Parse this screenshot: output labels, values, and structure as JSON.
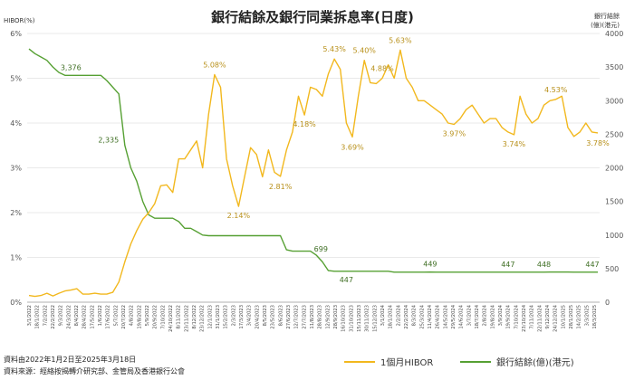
{
  "chart_data": {
    "type": "line",
    "title": "銀行結餘及銀行同業拆息率(日度)",
    "left_axis_title": "HIBOR(%)",
    "right_axis_title": "銀行結餘\n(億)(港元)",
    "ylim_left": [
      0,
      6
    ],
    "ylim_right": [
      0,
      4000
    ],
    "left_ticks": [
      "0%",
      "1%",
      "2%",
      "3%",
      "4%",
      "5%",
      "6%"
    ],
    "right_ticks": [
      "0",
      "500",
      "1000",
      "1500",
      "2000",
      "2500",
      "3000",
      "3500",
      "4000"
    ],
    "x_ticks": [
      "3/1/2022",
      "18/1/2022",
      "7/2/2022",
      "22/2/2022",
      "9/3/2022",
      "24/3/2022",
      "8/4/2022",
      "28/4/2022",
      "17/5/2022",
      "1/6/2022",
      "17/6/2022",
      "5/7/2022",
      "20/7/2022",
      "4/8/2022",
      "19/8/2022",
      "5/9/2022",
      "20/9/2022",
      "7/10/2022",
      "24/10/2022",
      "8/11/2022",
      "23/11/2022",
      "8/12/2022",
      "23/12/2022",
      "12/1/2023",
      "31/1/2023",
      "15/2/2023",
      "2/3/2023",
      "17/3/2023",
      "3/4/2023",
      "20/4/2023",
      "8/5/2023",
      "23/5/2023",
      "8/6/2023",
      "27/6/2023",
      "12/7/2023",
      "27/7/2023",
      "11/8/2023",
      "28/8/2023",
      "12/9/2023",
      "28/9/2023",
      "16/10/2023",
      "31/10/2023",
      "15/11/2023",
      "30/11/2023",
      "15/12/2023",
      "3/1/2024",
      "18/1/2024",
      "2/2/2024",
      "22/2/2024",
      "8/3/2024",
      "25/3/2024",
      "11/4/2024",
      "26/4/2024",
      "14/5/2024",
      "29/5/2024",
      "14/6/2024",
      "3/7/2024",
      "18/7/2024",
      "2/8/2024",
      "19/8/2024",
      "3/9/2024",
      "19/9/2024",
      "7/10/2024",
      "23/10/2024",
      "7/11/2024",
      "22/11/2024",
      "9/12/2024",
      "24/12/2024",
      "10/1/2025",
      "28/1/2025",
      "14/2/2025",
      "3/3/2025",
      "18/3/2025"
    ],
    "series": [
      {
        "name": "1個月HIBOR",
        "color": "#f2b81e",
        "axis": "left",
        "values": [
          0.15,
          0.13,
          0.15,
          0.2,
          0.14,
          0.2,
          0.25,
          0.27,
          0.3,
          0.18,
          0.18,
          0.2,
          0.18,
          0.18,
          0.22,
          0.45,
          0.9,
          1.3,
          1.6,
          1.85,
          2.0,
          2.2,
          2.6,
          2.62,
          2.45,
          3.2,
          3.2,
          3.4,
          3.6,
          3.0,
          4.2,
          5.08,
          4.8,
          3.2,
          2.6,
          2.14,
          2.8,
          3.45,
          3.3,
          2.8,
          3.4,
          2.9,
          2.81,
          3.4,
          3.8,
          4.6,
          4.18,
          4.8,
          4.75,
          4.6,
          5.1,
          5.43,
          5.2,
          4.0,
          3.69,
          4.6,
          5.4,
          4.9,
          4.88,
          5.0,
          5.3,
          5.0,
          5.63,
          5.0,
          4.8,
          4.5,
          4.5,
          4.4,
          4.3,
          4.2,
          4.0,
          3.97,
          4.1,
          4.3,
          4.4,
          4.2,
          4.0,
          4.1,
          4.1,
          3.9,
          3.8,
          3.74,
          4.6,
          4.2,
          4.0,
          4.1,
          4.4,
          4.5,
          4.53,
          4.6,
          3.9,
          3.7,
          3.8,
          4.0,
          3.8,
          3.78
        ]
      },
      {
        "name": "銀行結餘(億)(港元)",
        "color": "#56a033",
        "axis": "right",
        "values": [
          3770,
          3700,
          3650,
          3600,
          3500,
          3420,
          3376,
          3376,
          3376,
          3376,
          3376,
          3376,
          3376,
          3300,
          3200,
          3100,
          2335,
          2000,
          1800,
          1500,
          1300,
          1250,
          1250,
          1250,
          1250,
          1200,
          1100,
          1100,
          1050,
          1000,
          990,
          990,
          990,
          990,
          990,
          990,
          990,
          990,
          990,
          990,
          990,
          990,
          990,
          780,
          760,
          760,
          760,
          760,
          699,
          600,
          470,
          460,
          460,
          460,
          460,
          460,
          460,
          460,
          460,
          460,
          460,
          447,
          447,
          447,
          447,
          447,
          447,
          449,
          447,
          447,
          447,
          447,
          447,
          447,
          447,
          447,
          447,
          447,
          447,
          447,
          447,
          447,
          447,
          447,
          447,
          447,
          447,
          448,
          448,
          448,
          448,
          447,
          447,
          447,
          447,
          447
        ]
      }
    ],
    "annotations_hibor": [
      "5.08%",
      "2.14%",
      "2.81%",
      "4.18%",
      "5.43%",
      "3.69%",
      "5.40%",
      "4.88%",
      "5.63%",
      "3.97%",
      "3.74%",
      "4.53%",
      "3.78%"
    ],
    "annotations_balance": [
      "3,376",
      "2,335",
      "699",
      "447",
      "449",
      "447",
      "448",
      "447"
    ],
    "source_period": "資料由2022年1月2日至2025年3月18日",
    "source": "資料來源：經絡按揭轉介研究部、金管局及香港銀行公會"
  }
}
